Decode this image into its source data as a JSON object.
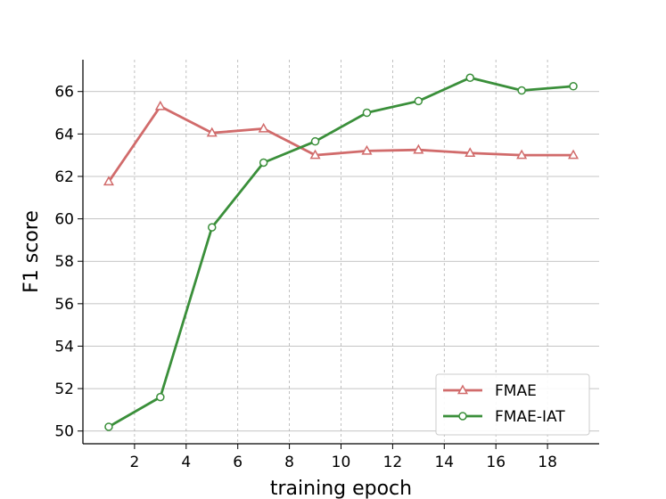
{
  "chart_data": {
    "type": "line",
    "title": "",
    "xlabel": "training epoch",
    "ylabel": "F1 score",
    "x": [
      1,
      3,
      5,
      7,
      9,
      11,
      13,
      15,
      17,
      19
    ],
    "xlim": [
      0.0,
      20.0
    ],
    "ylim": [
      49.4,
      67.5
    ],
    "xticks": [
      2,
      4,
      6,
      8,
      10,
      12,
      14,
      16,
      18
    ],
    "yticks": [
      50,
      52,
      54,
      56,
      58,
      60,
      62,
      64,
      66
    ],
    "grid": {
      "vertical": "dashed",
      "horizontal": "solid"
    },
    "legend_position": "lower-right",
    "series": [
      {
        "name": "FMAE",
        "color": "#d16b6b",
        "marker": "triangle",
        "values": [
          61.75,
          65.3,
          64.05,
          64.25,
          63.0,
          63.2,
          63.25,
          63.1,
          63.0,
          63.0
        ]
      },
      {
        "name": "FMAE-IAT",
        "color": "#3a8f3a",
        "marker": "circle",
        "values": [
          50.2,
          51.6,
          59.6,
          62.65,
          63.65,
          65.0,
          65.55,
          66.65,
          66.05,
          66.25
        ]
      }
    ]
  }
}
